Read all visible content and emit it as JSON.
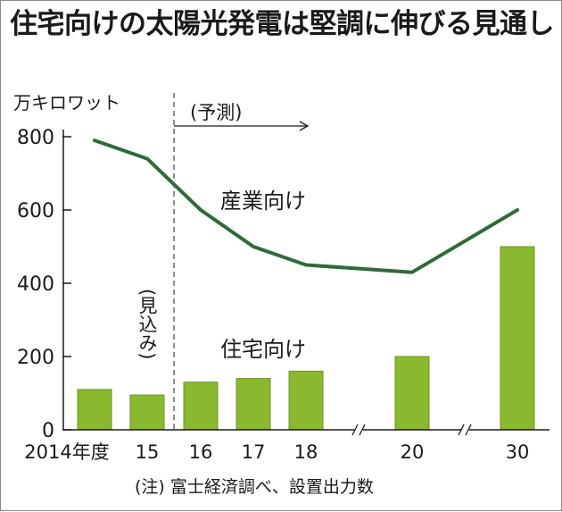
{
  "header": {
    "title": "住宅向けの太陽光発電は堅調に伸びる見通し"
  },
  "unit_label": "万キロワット",
  "footnote": "(注) 富士経済調べ、設置出力数",
  "forecast_label": "(予測)",
  "estimate_label": "(見込み)",
  "colors": {
    "bar": "#8ab82e",
    "bar_edge": "#6e9620",
    "line": "#2f6b3a",
    "text": "#1a1a1a",
    "divider": "#555555"
  },
  "chart_data": {
    "type": "bar",
    "title": "住宅向けの太陽光発電は堅調に伸びる見通し",
    "ylabel": "万キロワット",
    "ylim": [
      0,
      800
    ],
    "yticks": [
      0,
      200,
      400,
      600,
      800
    ],
    "grid": false,
    "categories": [
      "2014年度",
      "15",
      "16",
      "17",
      "18",
      "20",
      "30"
    ],
    "axis_breaks": [
      "18-20",
      "20-30"
    ],
    "forecast_starts_after": "15",
    "series": [
      {
        "name": "住宅向け",
        "type": "bar",
        "values": [
          110,
          95,
          130,
          140,
          160,
          200,
          500
        ]
      },
      {
        "name": "産業向け",
        "type": "line",
        "values": [
          790,
          740,
          600,
          500,
          450,
          430,
          600
        ]
      }
    ]
  }
}
